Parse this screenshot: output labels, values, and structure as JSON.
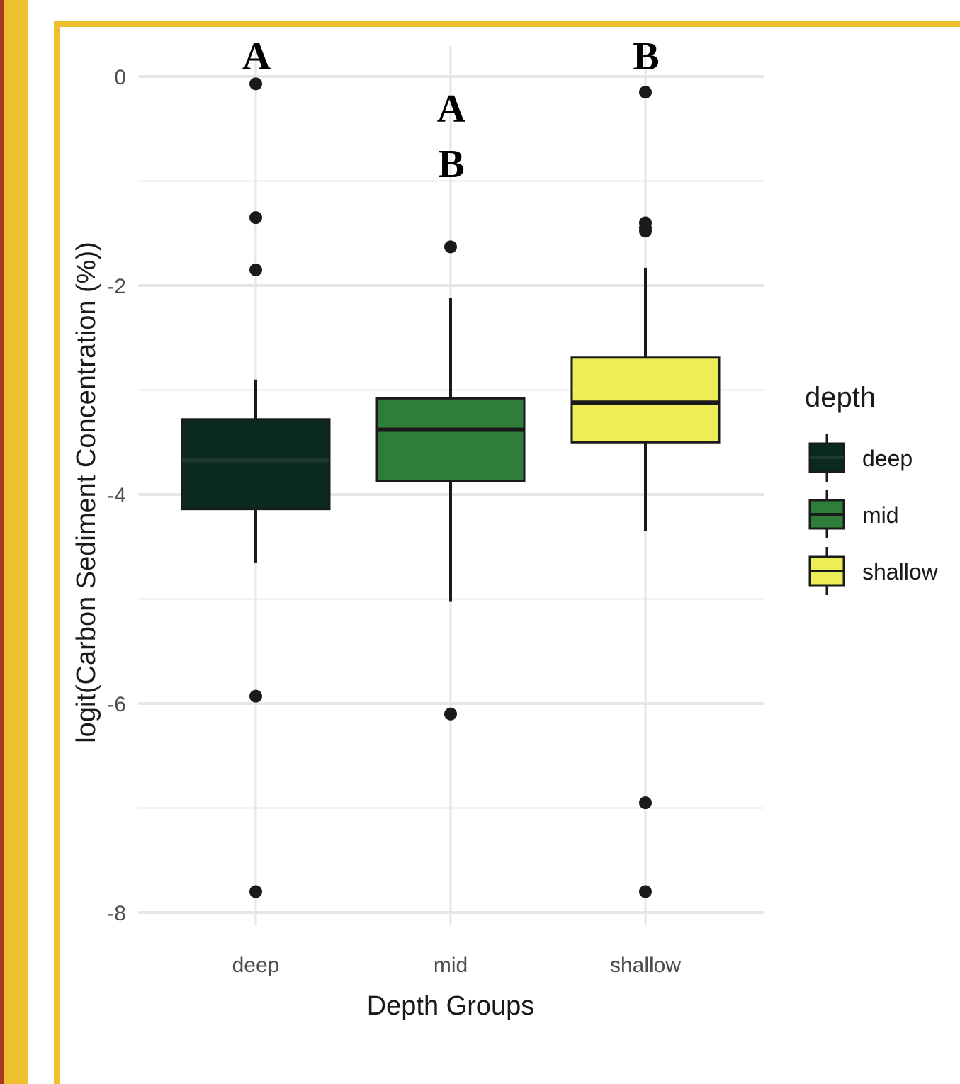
{
  "chart_data": {
    "type": "box",
    "title": "",
    "xlabel": "Depth Groups",
    "ylabel": "logit(Carbon Sediment Concentration (%))",
    "ylim": [
      -8.5,
      0.3
    ],
    "yticks": [
      0,
      -2,
      -4,
      -6,
      -8
    ],
    "grid": true,
    "categories": [
      "deep",
      "mid",
      "shallow"
    ],
    "series": [
      {
        "name": "deep",
        "color": "#0B2A1E",
        "median_color": "#1E3A30",
        "whisker_low": -4.65,
        "q1": -4.14,
        "median": -3.67,
        "q3": -3.28,
        "whisker_high": -2.9,
        "outliers": [
          -0.07,
          -1.35,
          -1.85,
          -5.93,
          -7.8
        ]
      },
      {
        "name": "mid",
        "color": "#2E7D3B",
        "median_color": "#1A1A1A",
        "whisker_low": -5.02,
        "q1": -3.87,
        "median": -3.38,
        "q3": -3.08,
        "whisker_high": -2.12,
        "outliers": [
          -1.63,
          -6.1
        ]
      },
      {
        "name": "shallow",
        "color": "#EDED58",
        "median_color": "#1A1A1A",
        "whisker_low": -4.35,
        "q1": -3.5,
        "median": -3.12,
        "q3": -2.69,
        "whisker_high": -1.83,
        "outliers": [
          -0.15,
          -1.4,
          -1.45,
          -1.48,
          -6.95,
          -7.8
        ]
      }
    ],
    "significance_letters": [
      {
        "category": "deep",
        "lines": [
          "A"
        ]
      },
      {
        "category": "mid",
        "lines": [
          "A",
          "B"
        ]
      },
      {
        "category": "shallow",
        "lines": [
          "B"
        ]
      }
    ],
    "legend": {
      "title": "depth",
      "position": "right",
      "entries": [
        "deep",
        "mid",
        "shallow"
      ]
    }
  }
}
